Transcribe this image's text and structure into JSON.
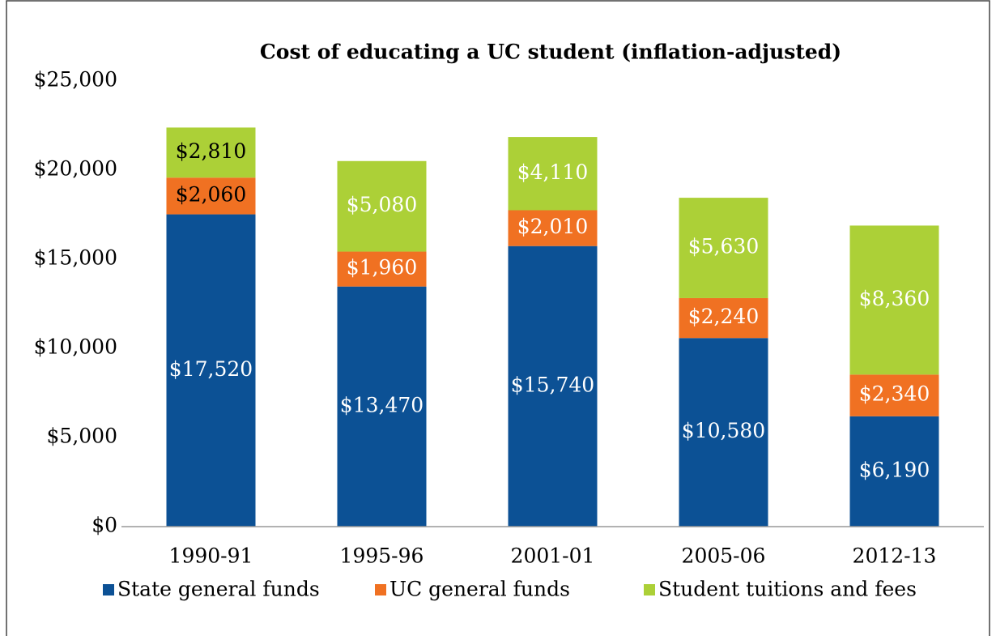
{
  "chart_data": {
    "type": "stacked_bar",
    "title": "Cost of educating a UC student (inflation-adjusted)",
    "categories": [
      "1990-91",
      "1995-96",
      "2001-01",
      "2005-06",
      "2012-13"
    ],
    "series": [
      {
        "name": "State general funds",
        "color": "#0c5195",
        "values": [
          17520,
          13470,
          15740,
          10580,
          6190
        ],
        "value_labels": [
          "$17,520",
          "$13,470",
          "$15,740",
          "$10,580",
          "$6,190"
        ],
        "label_colors": [
          "#ffffff",
          "#ffffff",
          "#ffffff",
          "#ffffff",
          "#ffffff"
        ]
      },
      {
        "name": "UC general funds",
        "color": "#f07122",
        "values": [
          2060,
          1960,
          2010,
          2240,
          2340
        ],
        "value_labels": [
          "$2,060",
          "$1,960",
          "$2,010",
          "$2,240",
          "$2,340"
        ],
        "label_colors": [
          "#000000",
          "#ffffff",
          "#ffffff",
          "#ffffff",
          "#ffffff"
        ]
      },
      {
        "name": "Student tuitions and fees",
        "color": "#acd037",
        "values": [
          2810,
          5080,
          4110,
          5630,
          8360
        ],
        "value_labels": [
          "$2,810",
          "$5,080",
          "$4,110",
          "$5,630",
          "$8,360"
        ],
        "label_colors": [
          "#000000",
          "#ffffff",
          "#ffffff",
          "#ffffff",
          "#ffffff"
        ]
      }
    ],
    "ylim": [
      0,
      25000
    ],
    "yticks": [
      {
        "value": 0,
        "label": "$0"
      },
      {
        "value": 5000,
        "label": "$5,000"
      },
      {
        "value": 10000,
        "label": "$10,000"
      },
      {
        "value": 15000,
        "label": "$15,000"
      },
      {
        "value": 20000,
        "label": "$20,000"
      },
      {
        "value": 25000,
        "label": "$25,000"
      }
    ],
    "grid": false,
    "legend": "bottom"
  }
}
